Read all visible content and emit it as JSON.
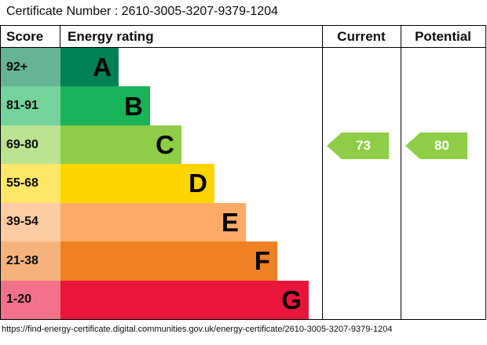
{
  "title": "Certificate Number : 2610-3005-3207-9379-1204",
  "footer_url": "https://find-energy-certificate.digital.communities.gov.uk/energy-certificate/2610-3005-3207-9379-1204",
  "chart_data": {
    "type": "bar",
    "title": "Energy rating (EPC band chart)",
    "columns": {
      "score": "Score",
      "rating": "Energy rating",
      "current": "Current",
      "potential": "Potential"
    },
    "bands": [
      {
        "score_range": "92+",
        "letter": "A",
        "color": "#008054",
        "score_bg": "#66b395"
      },
      {
        "score_range": "81-91",
        "letter": "B",
        "color": "#19b459",
        "score_bg": "#75d29b"
      },
      {
        "score_range": "69-80",
        "letter": "C",
        "color": "#8dce46",
        "score_bg": "#bbe290"
      },
      {
        "score_range": "55-68",
        "letter": "D",
        "color": "#ffd500",
        "score_bg": "#ffe666"
      },
      {
        "score_range": "39-54",
        "letter": "E",
        "color": "#fcaa65",
        "score_bg": "#fdcca3"
      },
      {
        "score_range": "21-38",
        "letter": "F",
        "color": "#ef8023",
        "score_bg": "#f5b37b"
      },
      {
        "score_range": "1-20",
        "letter": "G",
        "color": "#e9153b",
        "score_bg": "#f27389"
      }
    ],
    "current": {
      "value": "73",
      "band": "C",
      "color": "#8dce46"
    },
    "potential": {
      "value": "80",
      "band": "C",
      "color": "#8dce46"
    }
  }
}
